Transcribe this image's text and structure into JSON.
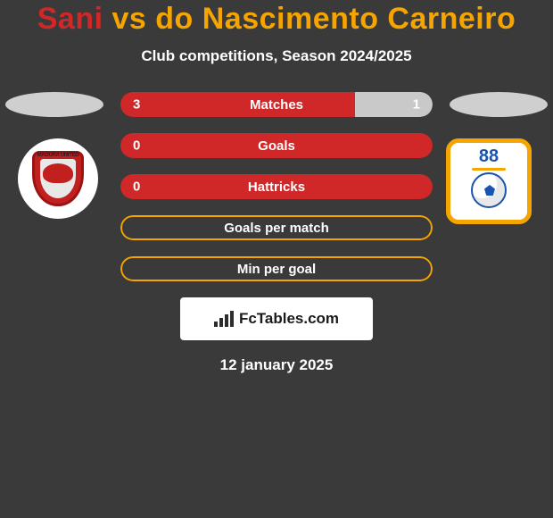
{
  "title": {
    "text": "Sani vs do Nascimento Carneiro",
    "left_color": "#d02828",
    "right_color": "#f5a400"
  },
  "subtitle": "Club competitions, Season 2024/2025",
  "colors": {
    "player1": "#d02828",
    "player2": "#f5a400",
    "background": "#3a3a3a",
    "bar_neutral": "#c9c9c9"
  },
  "stats": [
    {
      "label": "Matches",
      "left_value": "3",
      "right_value": "1",
      "left_pct": 75,
      "right_pct": 25,
      "fill_mode": "split"
    },
    {
      "label": "Goals",
      "left_value": "0",
      "right_value": "",
      "left_pct": 0,
      "right_pct": 0,
      "fill_mode": "outline-left"
    },
    {
      "label": "Hattricks",
      "left_value": "0",
      "right_value": "",
      "left_pct": 0,
      "right_pct": 0,
      "fill_mode": "outline-left"
    },
    {
      "label": "Goals per match",
      "left_value": "",
      "right_value": "",
      "left_pct": 0,
      "right_pct": 0,
      "fill_mode": "outline-right"
    },
    {
      "label": "Min per goal",
      "left_value": "",
      "right_value": "",
      "left_pct": 0,
      "right_pct": 0,
      "fill_mode": "outline-right"
    }
  ],
  "logos": {
    "left": {
      "name": "Madura United",
      "badge_text": "MADURA UNITED"
    },
    "right": {
      "name": "Barito Putera",
      "number": "88"
    }
  },
  "footer": {
    "brand": "FcTables.com",
    "date": "12 january 2025"
  }
}
